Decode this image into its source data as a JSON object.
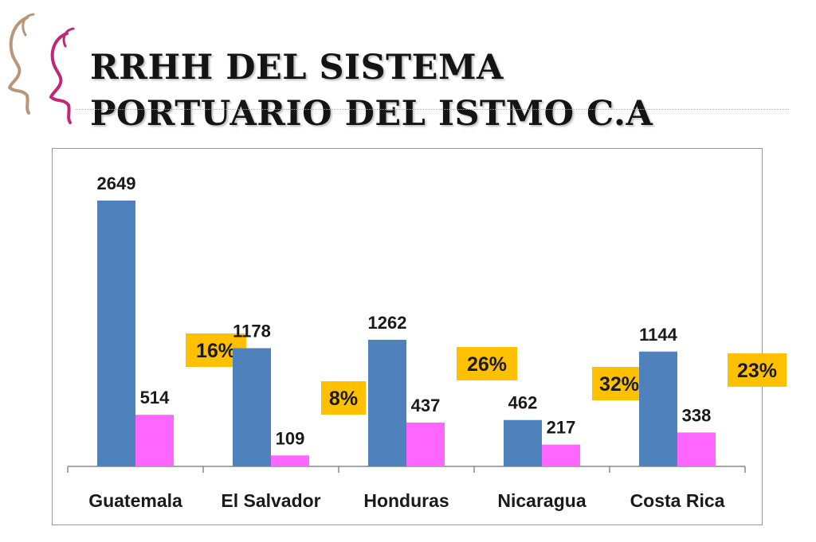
{
  "header": {
    "title_line1": "RRHH DEL SISTEMA",
    "title_line2": "PORTUARIO DEL ISTMO C.A"
  },
  "colors": {
    "series_blue": "#4f81bd",
    "series_pink": "#ff66ff",
    "badge_gold": "#ffc000",
    "logo_pink": "#c0267a",
    "logo_tan": "#b8967a"
  },
  "chart_data": {
    "type": "bar",
    "categories": [
      "Guatemala",
      "El Salvador",
      "Honduras",
      "Nicaragua",
      "Costa Rica"
    ],
    "series": [
      {
        "values": [
          2649,
          1178,
          1262,
          462,
          1144
        ]
      },
      {
        "values": [
          514,
          109,
          437,
          217,
          338
        ]
      }
    ],
    "percent_badges": [
      "16%",
      "8%",
      "26%",
      "32%",
      "23%"
    ],
    "ylim": [
      0,
      2649
    ],
    "grid": false,
    "legend": "none",
    "title": "",
    "xlabel": "",
    "ylabel": ""
  }
}
